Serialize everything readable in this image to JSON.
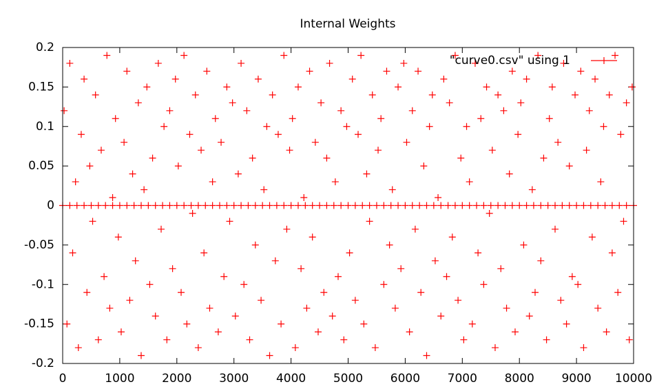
{
  "chart_data": {
    "type": "scatter",
    "title": "Internal Weights",
    "xlim": [
      0,
      10000
    ],
    "xticks": [
      0,
      1000,
      2000,
      3000,
      4000,
      5000,
      6000,
      7000,
      8000,
      9000,
      10000
    ],
    "ylim": [
      -0.2,
      0.2
    ],
    "yticks": [
      -0.2,
      -0.15,
      -0.1,
      -0.05,
      0,
      0.05,
      0.1,
      0.15,
      0.2
    ],
    "legend": "top-right",
    "grid": false,
    "series": [
      {
        "name": "\"curve0.csv\" using 1",
        "color": "#ff0000",
        "x": [
          25,
          75,
          125,
          175,
          225,
          275,
          325,
          375,
          425,
          475,
          525,
          575,
          625,
          675,
          725,
          775,
          825,
          875,
          925,
          975,
          1025,
          1075,
          1125,
          1175,
          1225,
          1275,
          1325,
          1375,
          1425,
          1475,
          1525,
          1575,
          1625,
          1675,
          1725,
          1775,
          1825,
          1875,
          1925,
          1975,
          2025,
          2075,
          2125,
          2175,
          2225,
          2275,
          2325,
          2375,
          2425,
          2475,
          2525,
          2575,
          2625,
          2675,
          2725,
          2775,
          2825,
          2875,
          2925,
          2975,
          3025,
          3075,
          3125,
          3175,
          3225,
          3275,
          3325,
          3375,
          3425,
          3475,
          3525,
          3575,
          3625,
          3675,
          3725,
          3775,
          3825,
          3875,
          3925,
          3975,
          4025,
          4075,
          4125,
          4175,
          4225,
          4275,
          4325,
          4375,
          4425,
          4475,
          4525,
          4575,
          4625,
          4675,
          4725,
          4775,
          4825,
          4875,
          4925,
          4975,
          5025,
          5075,
          5125,
          5175,
          5225,
          5275,
          5325,
          5375,
          5425,
          5475,
          5525,
          5575,
          5625,
          5675,
          5725,
          5775,
          5825,
          5875,
          5925,
          5975,
          6025,
          6075,
          6125,
          6175,
          6225,
          6275,
          6325,
          6375,
          6425,
          6475,
          6525,
          6575,
          6625,
          6675,
          6725,
          6775,
          6825,
          6875,
          6925,
          6975,
          7025,
          7075,
          7125,
          7175,
          7225,
          7275,
          7325,
          7375,
          7425,
          7475,
          7525,
          7575,
          7625,
          7675,
          7725,
          7775,
          7825,
          7875,
          7925,
          7975,
          8025,
          8075,
          8125,
          8175,
          8225,
          8275,
          8325,
          8375,
          8425,
          8475,
          8525,
          8575,
          8625,
          8675,
          8725,
          8775,
          8825,
          8875,
          8925,
          8975,
          9025,
          9075,
          9125,
          9175,
          9225,
          9275,
          9325,
          9375,
          9425,
          9475,
          9525,
          9575,
          9625,
          9675,
          9725,
          9775,
          9825,
          9875,
          9925,
          9975,
          0,
          125,
          250,
          375,
          500,
          625,
          750,
          875,
          1000,
          1125,
          1250,
          1375,
          1500,
          1625,
          1750,
          1875,
          2000,
          2125,
          2250,
          2375,
          2500,
          2625,
          2750,
          2875,
          3000,
          3125,
          3250,
          3375,
          3500,
          3625,
          3750,
          3875,
          4000,
          4125,
          4250,
          4375,
          4500,
          4625,
          4750,
          4875,
          5000,
          5125,
          5250,
          5375,
          5500,
          5625,
          5750,
          5875,
          6000,
          6125,
          6250,
          6375,
          6500,
          6625,
          6750,
          6875,
          7000,
          7125,
          7250,
          7375,
          7500,
          7625,
          7750,
          7875,
          8000,
          8125,
          8250,
          8375,
          8500,
          8625,
          8750,
          8875,
          9000,
          9125,
          9250,
          9375,
          9500,
          9625,
          9750,
          9875,
          10000
        ],
        "values": [
          0.12,
          -0.15,
          0.18,
          -0.06,
          0.03,
          -0.18,
          0.09,
          0.16,
          -0.11,
          0.05,
          -0.02,
          0.14,
          -0.17,
          0.07,
          -0.09,
          0.19,
          -0.13,
          0.01,
          0.11,
          -0.04,
          -0.16,
          0.08,
          0.17,
          -0.12,
          0.04,
          -0.07,
          0.13,
          -0.19,
          0.02,
          0.15,
          -0.1,
          0.06,
          -0.14,
          0.18,
          -0.03,
          0.1,
          -0.17,
          0.12,
          -0.08,
          0.16,
          0.05,
          -0.11,
          0.19,
          -0.15,
          0.09,
          -0.01,
          0.14,
          -0.18,
          0.07,
          -0.06,
          0.17,
          -0.13,
          0.03,
          0.11,
          -0.16,
          0.08,
          -0.09,
          0.15,
          -0.02,
          0.13,
          -0.14,
          0.04,
          0.18,
          -0.1,
          0.12,
          -0.17,
          0.06,
          -0.05,
          0.16,
          -0.12,
          0.02,
          0.1,
          -0.19,
          0.14,
          -0.07,
          0.09,
          -0.15,
          0.19,
          -0.03,
          0.07,
          0.11,
          -0.18,
          0.15,
          -0.08,
          0.01,
          -0.13,
          0.17,
          -0.04,
          0.08,
          -0.16,
          0.13,
          -0.11,
          0.06,
          0.18,
          -0.14,
          0.03,
          -0.09,
          0.12,
          -0.17,
          0.1,
          -0.06,
          0.16,
          -0.12,
          0.09,
          0.19,
          -0.15,
          0.04,
          -0.02,
          0.14,
          -0.18,
          0.07,
          0.11,
          -0.1,
          0.17,
          -0.05,
          0.02,
          -0.13,
          0.15,
          -0.08,
          0.18,
          0.08,
          -0.16,
          0.12,
          -0.03,
          0.17,
          -0.11,
          0.05,
          -0.19,
          0.1,
          0.14,
          -0.07,
          0.01,
          -0.14,
          0.16,
          -0.09,
          0.13,
          -0.04,
          0.19,
          -0.12,
          0.06,
          -0.17,
          0.1,
          0.03,
          -0.15,
          0.18,
          -0.06,
          0.11,
          -0.1,
          0.15,
          -0.01,
          0.07,
          -0.18,
          0.14,
          -0.08,
          0.12,
          -0.13,
          0.04,
          0.17,
          -0.16,
          0.09,
          0.13,
          -0.05,
          0.16,
          -0.14,
          0.02,
          -0.11,
          0.19,
          -0.07,
          0.06,
          -0.17,
          0.11,
          0.15,
          -0.03,
          0.08,
          -0.12,
          0.18,
          -0.15,
          0.05,
          -0.09,
          0.14,
          -0.1,
          0.17,
          -0.18,
          0.07,
          0.12,
          -0.04,
          0.16,
          -0.13,
          0.03,
          0.1,
          -0.16,
          0.14,
          -0.06,
          0.19,
          -0.11,
          0.09,
          -0.02,
          0.13,
          -0.17,
          0.15,
          0,
          0,
          0,
          0,
          0,
          0,
          0,
          0,
          0,
          0,
          0,
          0,
          0,
          0,
          0,
          0,
          0,
          0,
          0,
          0,
          0,
          0,
          0,
          0,
          0,
          0,
          0,
          0,
          0,
          0,
          0,
          0,
          0,
          0,
          0,
          0,
          0,
          0,
          0,
          0,
          0,
          0,
          0,
          0,
          0,
          0,
          0,
          0,
          0,
          0,
          0,
          0,
          0,
          0,
          0,
          0,
          0,
          0,
          0,
          0,
          0,
          0,
          0,
          0,
          0,
          0,
          0,
          0,
          0,
          0,
          0,
          0,
          0,
          0,
          0,
          0,
          0,
          0,
          0,
          0,
          0
        ]
      }
    ]
  }
}
